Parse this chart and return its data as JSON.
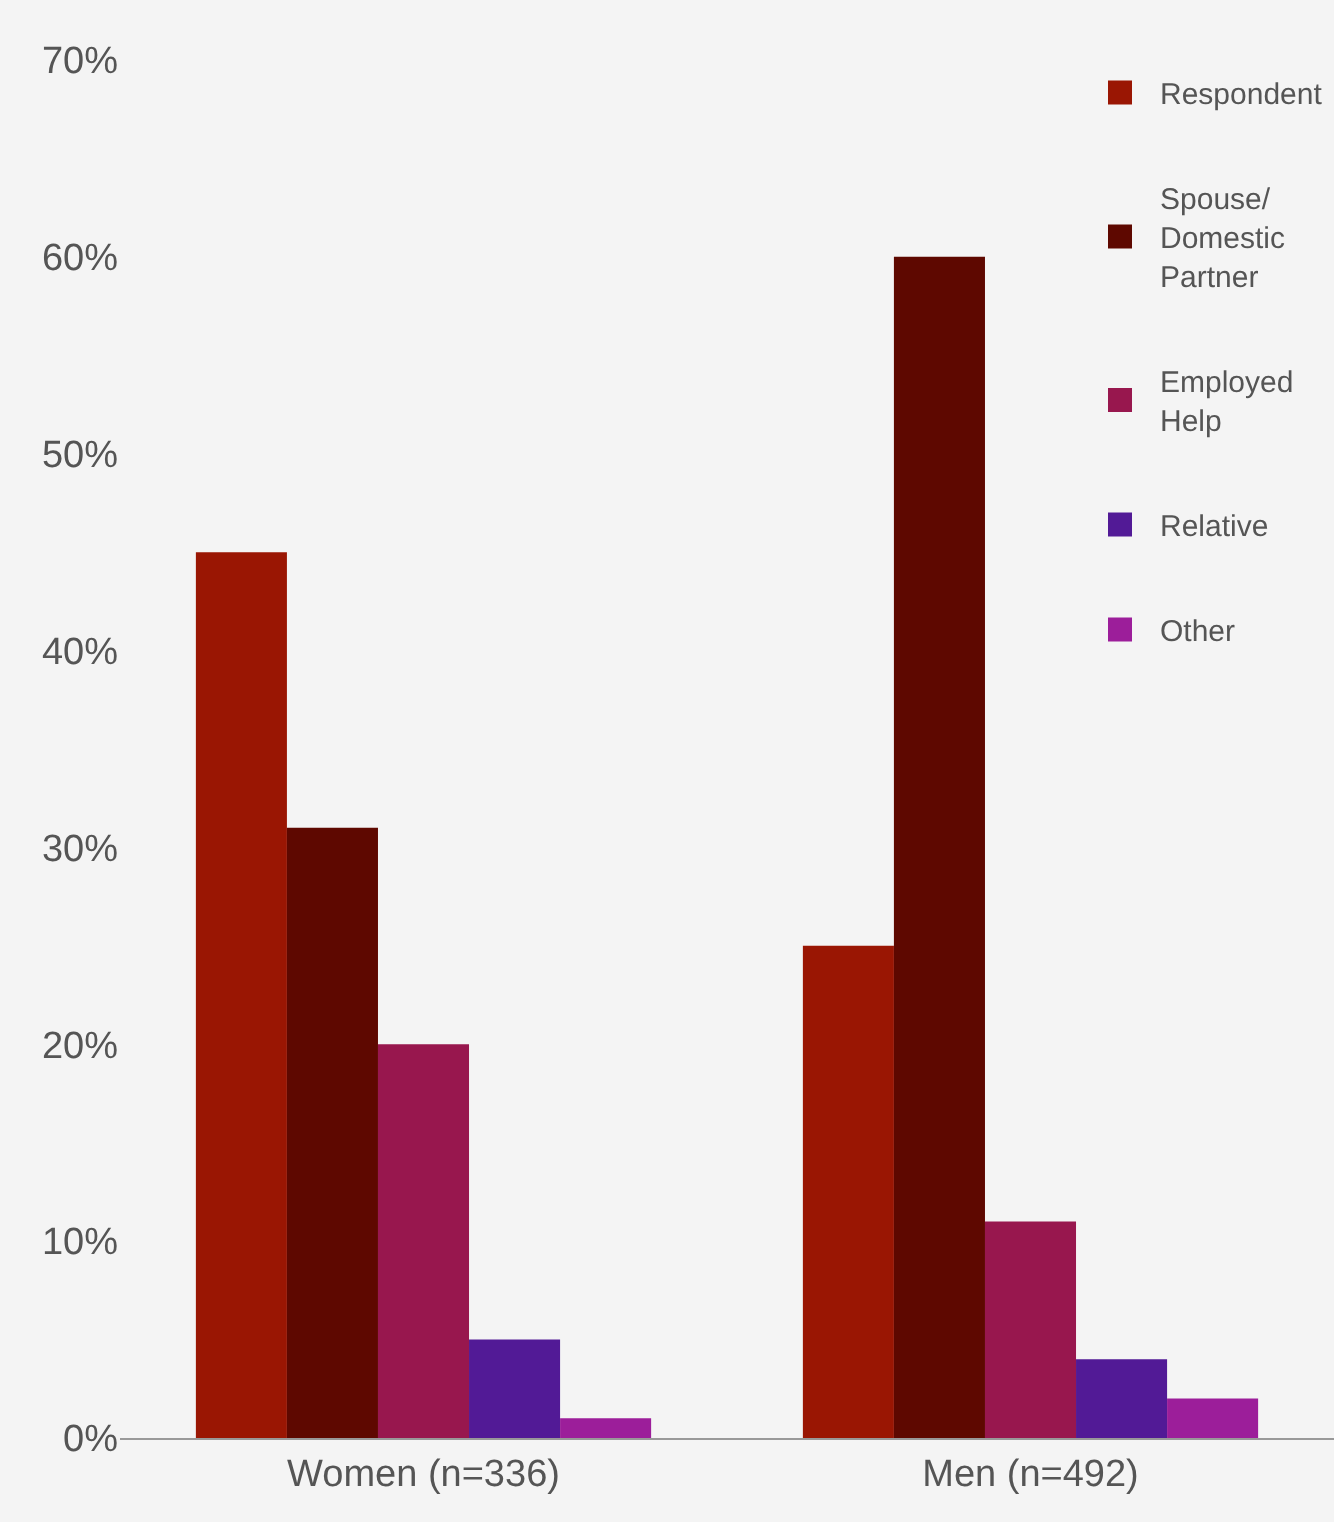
{
  "chart_data": {
    "type": "bar",
    "categories": [
      "Women (n=336)",
      "Men (n=492)"
    ],
    "series": [
      {
        "name": "Respondent",
        "color": "#9a1603",
        "values": [
          45,
          25
        ]
      },
      {
        "name": "Spouse/ Domestic Partner",
        "color": "#5e0800",
        "values": [
          31,
          60
        ]
      },
      {
        "name": "Employed Help",
        "color": "#98174e",
        "values": [
          20,
          11
        ]
      },
      {
        "name": "Relative",
        "color": "#521a96",
        "values": [
          5,
          4
        ]
      },
      {
        "name": "Other",
        "color": "#9c1e9a",
        "values": [
          1,
          2
        ]
      }
    ],
    "ylim": [
      0,
      70
    ],
    "yticks": [
      {
        "value": 0,
        "label": "0%"
      },
      {
        "value": 10,
        "label": "10%"
      },
      {
        "value": 20,
        "label": "20%"
      },
      {
        "value": 30,
        "label": "30%"
      },
      {
        "value": 40,
        "label": "40%"
      },
      {
        "value": 50,
        "label": "50%"
      },
      {
        "value": 60,
        "label": "60%"
      },
      {
        "value": 70,
        "label": "70%"
      }
    ],
    "grid": false,
    "legend": "top right"
  }
}
